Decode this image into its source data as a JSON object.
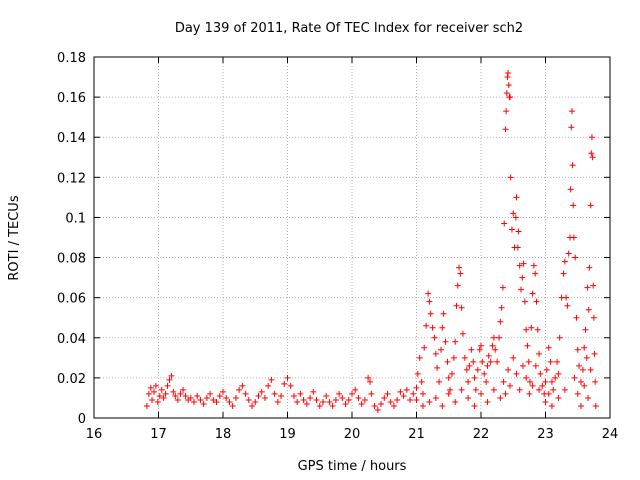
{
  "chart_data": {
    "type": "scatter",
    "title": "Day 139 of 2011, Rate Of TEC Index for receiver sch2",
    "xlabel": "GPS time / hours",
    "ylabel": "ROTI / TECUs",
    "xlim": [
      16,
      24
    ],
    "ylim": [
      0,
      0.18
    ],
    "xticks": [
      "16",
      "17",
      "18",
      "19",
      "20",
      "21",
      "22",
      "23",
      "24"
    ],
    "yticks": [
      "0",
      "0.02",
      "0.04",
      "0.06",
      "0.08",
      "0.1",
      "0.12",
      "0.14",
      "0.16",
      "0.18"
    ],
    "grid": true,
    "marker": "plus",
    "color": "#ff0000",
    "series": [
      {
        "points": [
          [
            16.82,
            0.006
          ],
          [
            16.85,
            0.012
          ],
          [
            16.88,
            0.015
          ],
          [
            16.9,
            0.009
          ],
          [
            16.93,
            0.013
          ],
          [
            16.96,
            0.016
          ],
          [
            16.99,
            0.008
          ],
          [
            17.02,
            0.011
          ],
          [
            17.05,
            0.014
          ],
          [
            17.08,
            0.01
          ],
          [
            17.11,
            0.012
          ],
          [
            17.14,
            0.016
          ],
          [
            17.17,
            0.019
          ],
          [
            17.2,
            0.021
          ],
          [
            17.23,
            0.013
          ],
          [
            17.26,
            0.011
          ],
          [
            17.3,
            0.009
          ],
          [
            17.34,
            0.012
          ],
          [
            17.38,
            0.014
          ],
          [
            17.42,
            0.011
          ],
          [
            17.46,
            0.009
          ],
          [
            17.5,
            0.01
          ],
          [
            17.55,
            0.008
          ],
          [
            17.6,
            0.011
          ],
          [
            17.65,
            0.009
          ],
          [
            17.7,
            0.007
          ],
          [
            17.75,
            0.01
          ],
          [
            17.8,
            0.012
          ],
          [
            17.85,
            0.009
          ],
          [
            17.9,
            0.008
          ],
          [
            17.95,
            0.011
          ],
          [
            18.0,
            0.013
          ],
          [
            18.05,
            0.01
          ],
          [
            18.1,
            0.008
          ],
          [
            18.15,
            0.006
          ],
          [
            18.2,
            0.01
          ],
          [
            18.25,
            0.014
          ],
          [
            18.3,
            0.016
          ],
          [
            18.35,
            0.012
          ],
          [
            18.4,
            0.009
          ],
          [
            18.45,
            0.006
          ],
          [
            18.5,
            0.008
          ],
          [
            18.55,
            0.011
          ],
          [
            18.6,
            0.013
          ],
          [
            18.65,
            0.01
          ],
          [
            18.7,
            0.016
          ],
          [
            18.75,
            0.019
          ],
          [
            18.8,
            0.012
          ],
          [
            18.85,
            0.008
          ],
          [
            18.9,
            0.011
          ],
          [
            18.95,
            0.017
          ],
          [
            19.0,
            0.02
          ],
          [
            19.05,
            0.016
          ],
          [
            19.1,
            0.011
          ],
          [
            19.15,
            0.008
          ],
          [
            19.2,
            0.012
          ],
          [
            19.25,
            0.009
          ],
          [
            19.3,
            0.007
          ],
          [
            19.35,
            0.01
          ],
          [
            19.4,
            0.013
          ],
          [
            19.45,
            0.009
          ],
          [
            19.5,
            0.006
          ],
          [
            19.55,
            0.008
          ],
          [
            19.6,
            0.011
          ],
          [
            19.65,
            0.008
          ],
          [
            19.7,
            0.006
          ],
          [
            19.75,
            0.009
          ],
          [
            19.8,
            0.012
          ],
          [
            19.85,
            0.01
          ],
          [
            19.9,
            0.007
          ],
          [
            19.95,
            0.009
          ],
          [
            20.0,
            0.012
          ],
          [
            20.05,
            0.014
          ],
          [
            20.1,
            0.01
          ],
          [
            20.15,
            0.007
          ],
          [
            20.2,
            0.009
          ],
          [
            20.25,
            0.02
          ],
          [
            20.28,
            0.018
          ],
          [
            20.3,
            0.012
          ],
          [
            20.35,
            0.006
          ],
          [
            20.4,
            0.004
          ],
          [
            20.45,
            0.007
          ],
          [
            20.5,
            0.01
          ],
          [
            20.55,
            0.012
          ],
          [
            20.6,
            0.008
          ],
          [
            20.65,
            0.006
          ],
          [
            20.7,
            0.009
          ],
          [
            20.75,
            0.013
          ],
          [
            20.8,
            0.011
          ],
          [
            20.85,
            0.014
          ],
          [
            20.9,
            0.009
          ],
          [
            20.95,
            0.012
          ],
          [
            21.0,
            0.015
          ],
          [
            21.02,
            0.022
          ],
          [
            21.05,
            0.03
          ],
          [
            21.08,
            0.018
          ],
          [
            21.1,
            0.012
          ],
          [
            21.12,
            0.035
          ],
          [
            21.15,
            0.046
          ],
          [
            21.18,
            0.062
          ],
          [
            21.2,
            0.058
          ],
          [
            21.22,
            0.052
          ],
          [
            21.25,
            0.045
          ],
          [
            21.28,
            0.04
          ],
          [
            21.3,
            0.032
          ],
          [
            21.32,
            0.025
          ],
          [
            21.35,
            0.018
          ],
          [
            21.38,
            0.034
          ],
          [
            21.4,
            0.045
          ],
          [
            21.42,
            0.052
          ],
          [
            21.45,
            0.038
          ],
          [
            21.48,
            0.028
          ],
          [
            21.5,
            0.02
          ],
          [
            21.52,
            0.014
          ],
          [
            21.55,
            0.022
          ],
          [
            21.58,
            0.03
          ],
          [
            21.6,
            0.038
          ],
          [
            21.62,
            0.056
          ],
          [
            21.64,
            0.066
          ],
          [
            21.66,
            0.075
          ],
          [
            21.68,
            0.072
          ],
          [
            21.7,
            0.055
          ],
          [
            21.72,
            0.042
          ],
          [
            21.75,
            0.03
          ],
          [
            21.78,
            0.024
          ],
          [
            21.8,
            0.018
          ],
          [
            21.82,
            0.026
          ],
          [
            21.85,
            0.034
          ],
          [
            21.88,
            0.028
          ],
          [
            21.9,
            0.02
          ],
          [
            21.92,
            0.014
          ],
          [
            21.95,
            0.024
          ],
          [
            21.98,
            0.034
          ],
          [
            22.0,
            0.036
          ],
          [
            22.02,
            0.028
          ],
          [
            22.05,
            0.022
          ],
          [
            22.08,
            0.018
          ],
          [
            22.1,
            0.026
          ],
          [
            22.12,
            0.031
          ],
          [
            22.15,
            0.028
          ],
          [
            22.18,
            0.036
          ],
          [
            22.2,
            0.04
          ],
          [
            22.22,
            0.034
          ],
          [
            22.25,
            0.028
          ],
          [
            22.28,
            0.04
          ],
          [
            22.3,
            0.048
          ],
          [
            22.32,
            0.055
          ],
          [
            22.34,
            0.065
          ],
          [
            22.36,
            0.097
          ],
          [
            22.38,
            0.144
          ],
          [
            22.39,
            0.153
          ],
          [
            22.4,
            0.162
          ],
          [
            22.41,
            0.17
          ],
          [
            22.42,
            0.172
          ],
          [
            22.43,
            0.166
          ],
          [
            22.44,
            0.16
          ],
          [
            22.45,
            0.16
          ],
          [
            22.46,
            0.12
          ],
          [
            22.48,
            0.094
          ],
          [
            22.5,
            0.102
          ],
          [
            22.52,
            0.085
          ],
          [
            22.54,
            0.1
          ],
          [
            22.55,
            0.11
          ],
          [
            22.57,
            0.085
          ],
          [
            22.58,
            0.093
          ],
          [
            22.6,
            0.076
          ],
          [
            22.62,
            0.064
          ],
          [
            22.64,
            0.07
          ],
          [
            22.66,
            0.077
          ],
          [
            22.68,
            0.058
          ],
          [
            22.7,
            0.044
          ],
          [
            22.72,
            0.036
          ],
          [
            22.74,
            0.028
          ],
          [
            22.76,
            0.018
          ],
          [
            22.78,
            0.045
          ],
          [
            22.8,
            0.062
          ],
          [
            22.82,
            0.076
          ],
          [
            22.84,
            0.072
          ],
          [
            22.86,
            0.058
          ],
          [
            22.88,
            0.044
          ],
          [
            22.9,
            0.032
          ],
          [
            22.92,
            0.022
          ],
          [
            22.95,
            0.016
          ],
          [
            22.98,
            0.012
          ],
          [
            23.0,
            0.018
          ],
          [
            23.02,
            0.024
          ],
          [
            23.05,
            0.035
          ],
          [
            23.08,
            0.028
          ],
          [
            23.1,
            0.018
          ],
          [
            23.12,
            0.014
          ],
          [
            23.15,
            0.02
          ],
          [
            23.18,
            0.028
          ],
          [
            23.2,
            0.022
          ],
          [
            23.22,
            0.04
          ],
          [
            23.25,
            0.06
          ],
          [
            23.28,
            0.072
          ],
          [
            23.3,
            0.078
          ],
          [
            23.32,
            0.06
          ],
          [
            23.34,
            0.056
          ],
          [
            23.36,
            0.082
          ],
          [
            23.38,
            0.09
          ],
          [
            23.39,
            0.114
          ],
          [
            23.4,
            0.145
          ],
          [
            23.41,
            0.153
          ],
          [
            23.42,
            0.126
          ],
          [
            23.43,
            0.106
          ],
          [
            23.44,
            0.09
          ],
          [
            23.46,
            0.08
          ],
          [
            23.48,
            0.05
          ],
          [
            23.5,
            0.034
          ],
          [
            23.52,
            0.026
          ],
          [
            23.55,
            0.018
          ],
          [
            23.58,
            0.024
          ],
          [
            23.6,
            0.035
          ],
          [
            23.62,
            0.044
          ],
          [
            23.64,
            0.03
          ],
          [
            23.65,
            0.065
          ],
          [
            23.67,
            0.054
          ],
          [
            23.68,
            0.075
          ],
          [
            23.7,
            0.106
          ],
          [
            23.71,
            0.132
          ],
          [
            23.72,
            0.14
          ],
          [
            23.73,
            0.13
          ],
          [
            23.74,
            0.066
          ],
          [
            23.75,
            0.05
          ],
          [
            23.76,
            0.032
          ],
          [
            23.77,
            0.018
          ],
          [
            23.78,
            0.006
          ],
          [
            22.35,
            0.018
          ],
          [
            22.38,
            0.012
          ],
          [
            22.42,
            0.024
          ],
          [
            22.45,
            0.016
          ],
          [
            22.5,
            0.03
          ],
          [
            22.55,
            0.022
          ],
          [
            22.6,
            0.014
          ],
          [
            22.65,
            0.026
          ],
          [
            22.7,
            0.02
          ],
          [
            22.75,
            0.012
          ],
          [
            22.8,
            0.016
          ],
          [
            22.85,
            0.026
          ],
          [
            22.9,
            0.014
          ],
          [
            23.0,
            0.008
          ],
          [
            23.05,
            0.012
          ],
          [
            23.1,
            0.006
          ],
          [
            23.2,
            0.01
          ],
          [
            23.3,
            0.014
          ],
          [
            23.45,
            0.02
          ],
          [
            23.5,
            0.012
          ],
          [
            23.55,
            0.006
          ],
          [
            23.6,
            0.016
          ],
          [
            23.66,
            0.01
          ],
          [
            23.7,
            0.024
          ],
          [
            21.3,
            0.01
          ],
          [
            21.4,
            0.006
          ],
          [
            21.5,
            0.012
          ],
          [
            21.6,
            0.008
          ],
          [
            21.7,
            0.014
          ],
          [
            21.8,
            0.01
          ],
          [
            21.9,
            0.006
          ],
          [
            22.0,
            0.012
          ],
          [
            22.1,
            0.008
          ],
          [
            22.2,
            0.014
          ],
          [
            22.3,
            0.01
          ],
          [
            21.2,
            0.008
          ],
          [
            21.1,
            0.006
          ],
          [
            21.0,
            0.009
          ]
        ]
      }
    ]
  }
}
